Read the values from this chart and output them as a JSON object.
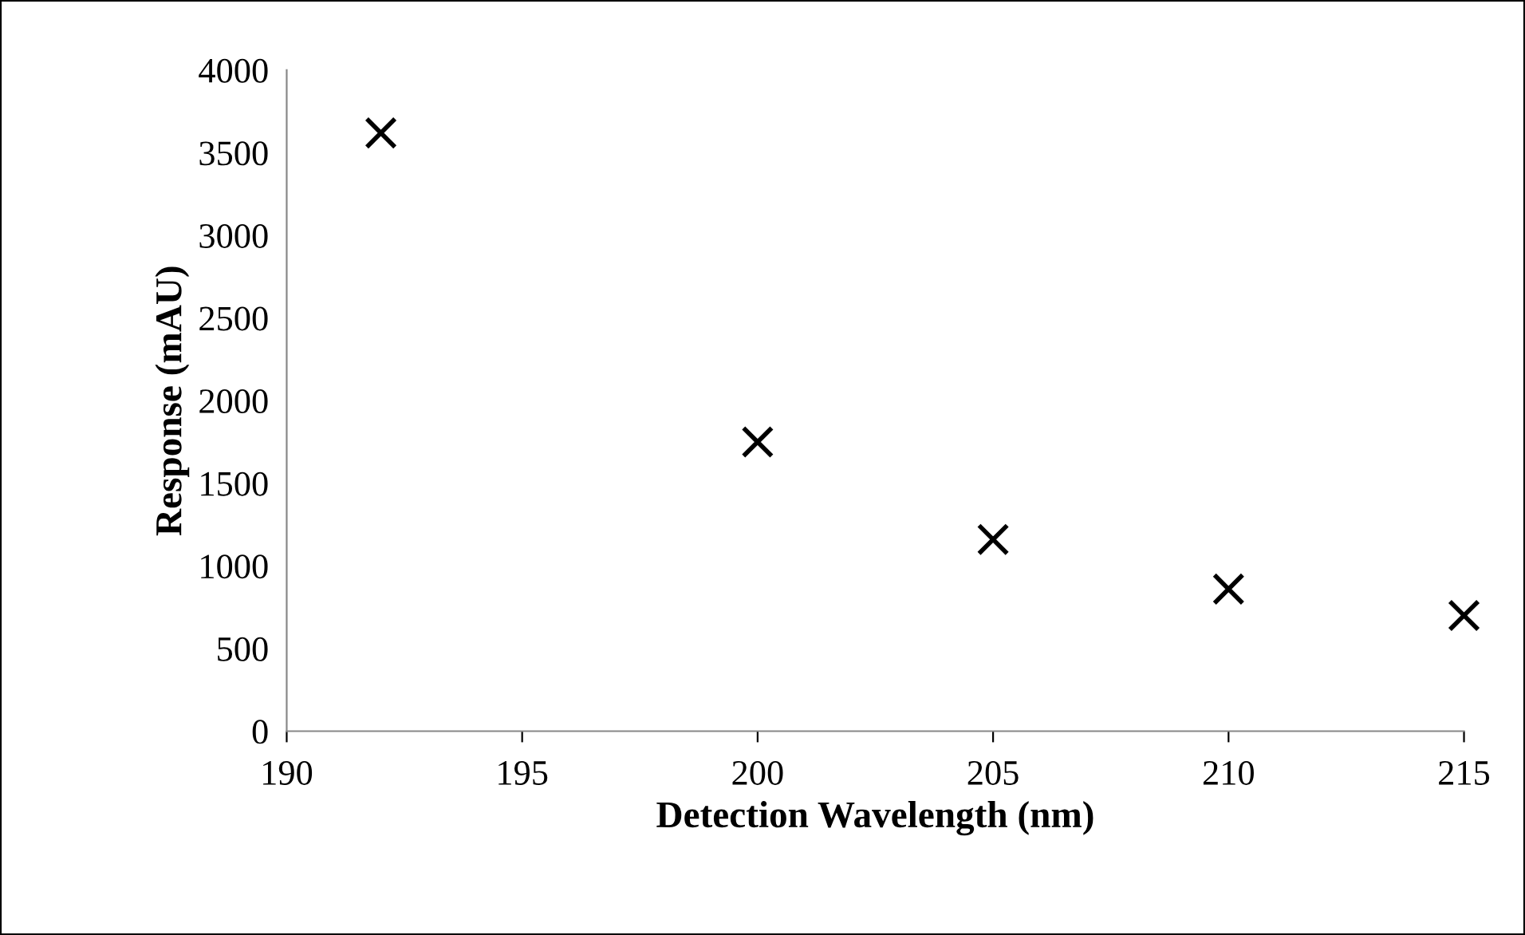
{
  "chart_data": {
    "type": "scatter",
    "xlabel": "Detection Wavelength (nm)",
    "ylabel": "Response (mAU)",
    "x": [
      192,
      200,
      205,
      210,
      215
    ],
    "values": [
      3620,
      1750,
      1160,
      860,
      700
    ],
    "color": "#000000",
    "marker": "cross",
    "xlim": [
      190,
      215
    ],
    "xticks": [
      190,
      195,
      200,
      205,
      210,
      215
    ],
    "ylim": [
      0,
      4000
    ],
    "yticks": [
      0,
      500,
      1000,
      1500,
      2000,
      2500,
      3000,
      3500,
      4000
    ],
    "grid": false,
    "legend": false
  }
}
